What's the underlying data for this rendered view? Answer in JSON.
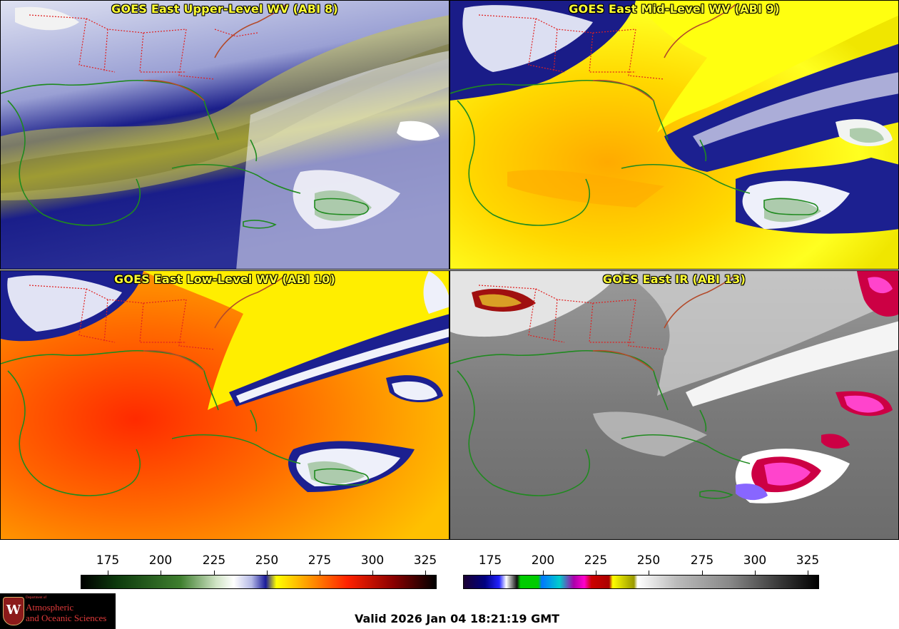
{
  "panels": [
    {
      "title": "GOES East Upper-Level WV (ABI 8)"
    },
    {
      "title": "GOES East Mid-Level WV (ABI 9)"
    },
    {
      "title": "GOES East Low-Level WV (ABI 10)"
    },
    {
      "title": "GOES East IR (ABI 13)"
    }
  ],
  "colorbars": {
    "wv": {
      "ticks": [
        "175",
        "200",
        "225",
        "250",
        "275",
        "300",
        "325"
      ],
      "colors": [
        "#000000",
        "#0d3a0d",
        "#3f7f2f",
        "#cfe3c4",
        "#ffffff",
        "#b5b9e6",
        "#1a1a9a",
        "#ffff00",
        "#ff9900",
        "#ff2200",
        "#8a0000",
        "#000000"
      ]
    },
    "ir": {
      "ticks": [
        "175",
        "200",
        "225",
        "250",
        "275",
        "300",
        "325"
      ]
    }
  },
  "logo": {
    "dept": "Department of",
    "line1": "Atmospheric",
    "line2": "and Oceanic Sciences",
    "crest": "W"
  },
  "valid_time": "Valid 2026 Jan 04 18:21:19 GMT"
}
